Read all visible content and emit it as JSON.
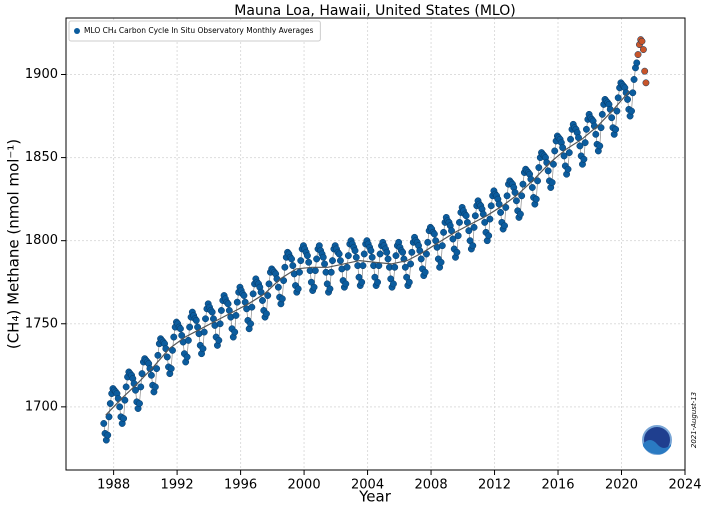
{
  "chart_data": {
    "type": "scatter",
    "title": "Mauna Loa, Hawaii, United States (MLO)",
    "xlabel": "Year",
    "ylabel": "(CH₄) Methane (nmol mol⁻¹)",
    "annotation": "2021-August-13",
    "xlim": [
      1985,
      2024
    ],
    "ylim": [
      1662,
      1934
    ],
    "xticks": [
      1988,
      1992,
      1996,
      2000,
      2004,
      2008,
      2012,
      2016,
      2020,
      2024
    ],
    "yticks": [
      1700,
      1750,
      1800,
      1850,
      1900
    ],
    "grid": true,
    "legend": "upper left",
    "series": [
      {
        "name": "MLO CH₄ Carbon Cycle In Situ Observatory Monthly Averages",
        "color": "#0b5c9e",
        "line_color": "#8a8a8a",
        "mode": "markers+lines",
        "x": [
          1987.38,
          1987.46,
          1987.54,
          1987.63,
          1987.71,
          1987.79,
          1987.88,
          1987.96,
          1988.04,
          1988.13,
          1988.21,
          1988.29,
          1988.38,
          1988.46,
          1988.54,
          1988.63,
          1988.71,
          1988.79,
          1988.88,
          1988.96,
          1989.04,
          1989.13,
          1989.21,
          1989.29,
          1989.38,
          1989.46,
          1989.54,
          1989.63,
          1989.71,
          1989.79,
          1989.88,
          1989.96,
          1990.04,
          1990.13,
          1990.21,
          1990.29,
          1990.38,
          1990.46,
          1990.54,
          1990.63,
          1990.71,
          1990.79,
          1990.88,
          1990.96,
          1991.04,
          1991.13,
          1991.21,
          1991.29,
          1991.38,
          1991.46,
          1991.54,
          1991.63,
          1991.71,
          1991.79,
          1991.88,
          1991.96,
          1992.04,
          1992.13,
          1992.21,
          1992.29,
          1992.38,
          1992.46,
          1992.54,
          1992.63,
          1992.71,
          1992.79,
          1992.88,
          1992.96,
          1993.04,
          1993.13,
          1993.21,
          1993.29,
          1993.38,
          1993.46,
          1993.54,
          1993.63,
          1993.71,
          1993.79,
          1993.88,
          1993.96,
          1994.04,
          1994.13,
          1994.21,
          1994.29,
          1994.38,
          1994.46,
          1994.54,
          1994.63,
          1994.71,
          1994.79,
          1994.88,
          1994.96,
          1995.04,
          1995.13,
          1995.21,
          1995.29,
          1995.38,
          1995.46,
          1995.54,
          1995.63,
          1995.71,
          1995.79,
          1995.88,
          1995.96,
          1996.04,
          1996.13,
          1996.21,
          1996.29,
          1996.38,
          1996.46,
          1996.54,
          1996.63,
          1996.71,
          1996.79,
          1996.88,
          1996.96,
          1997.04,
          1997.13,
          1997.21,
          1997.29,
          1997.38,
          1997.46,
          1997.54,
          1997.63,
          1997.71,
          1997.79,
          1997.88,
          1997.96,
          1998.04,
          1998.13,
          1998.21,
          1998.29,
          1998.38,
          1998.46,
          1998.54,
          1998.63,
          1998.71,
          1998.79,
          1998.88,
          1998.96,
          1999.04,
          1999.13,
          1999.21,
          1999.29,
          1999.38,
          1999.46,
          1999.54,
          1999.63,
          1999.71,
          1999.79,
          1999.88,
          1999.96,
          2000.04,
          2000.13,
          2000.21,
          2000.29,
          2000.38,
          2000.46,
          2000.54,
          2000.63,
          2000.71,
          2000.79,
          2000.88,
          2000.96,
          2001.04,
          2001.13,
          2001.21,
          2001.29,
          2001.38,
          2001.46,
          2001.54,
          2001.63,
          2001.71,
          2001.79,
          2001.88,
          2001.96,
          2002.04,
          2002.13,
          2002.21,
          2002.29,
          2002.38,
          2002.46,
          2002.54,
          2002.63,
          2002.71,
          2002.79,
          2002.88,
          2002.96,
          2003.04,
          2003.13,
          2003.21,
          2003.29,
          2003.38,
          2003.46,
          2003.54,
          2003.63,
          2003.71,
          2003.79,
          2003.88,
          2003.96,
          2004.04,
          2004.13,
          2004.21,
          2004.29,
          2004.38,
          2004.46,
          2004.54,
          2004.63,
          2004.71,
          2004.79,
          2004.88,
          2004.96,
          2005.04,
          2005.13,
          2005.21,
          2005.29,
          2005.38,
          2005.46,
          2005.54,
          2005.63,
          2005.71,
          2005.79,
          2005.88,
          2005.96,
          2006.04,
          2006.13,
          2006.21,
          2006.29,
          2006.38,
          2006.46,
          2006.54,
          2006.63,
          2006.71,
          2006.79,
          2006.88,
          2006.96,
          2007.04,
          2007.13,
          2007.21,
          2007.29,
          2007.38,
          2007.46,
          2007.54,
          2007.63,
          2007.71,
          2007.79,
          2007.88,
          2007.96,
          2008.04,
          2008.13,
          2008.21,
          2008.29,
          2008.38,
          2008.46,
          2008.54,
          2008.63,
          2008.71,
          2008.79,
          2008.88,
          2008.96,
          2009.04,
          2009.13,
          2009.21,
          2009.29,
          2009.38,
          2009.46,
          2009.54,
          2009.63,
          2009.71,
          2009.79,
          2009.88,
          2009.96,
          2010.04,
          2010.13,
          2010.21,
          2010.29,
          2010.38,
          2010.46,
          2010.54,
          2010.63,
          2010.71,
          2010.79,
          2010.88,
          2010.96,
          2011.04,
          2011.13,
          2011.21,
          2011.29,
          2011.38,
          2011.46,
          2011.54,
          2011.63,
          2011.71,
          2011.79,
          2011.88,
          2011.96,
          2012.04,
          2012.13,
          2012.21,
          2012.29,
          2012.38,
          2012.46,
          2012.54,
          2012.63,
          2012.71,
          2012.79,
          2012.88,
          2012.96,
          2013.04,
          2013.13,
          2013.21,
          2013.29,
          2013.38,
          2013.46,
          2013.54,
          2013.63,
          2013.71,
          2013.79,
          2013.88,
          2013.96,
          2014.04,
          2014.13,
          2014.21,
          2014.29,
          2014.38,
          2014.46,
          2014.54,
          2014.63,
          2014.71,
          2014.79,
          2014.88,
          2014.96,
          2015.04,
          2015.13,
          2015.21,
          2015.29,
          2015.38,
          2015.46,
          2015.54,
          2015.63,
          2015.71,
          2015.79,
          2015.88,
          2015.96,
          2016.04,
          2016.13,
          2016.21,
          2016.29,
          2016.38,
          2016.46,
          2016.54,
          2016.63,
          2016.71,
          2016.79,
          2016.88,
          2016.96,
          2017.04,
          2017.13,
          2017.21,
          2017.29,
          2017.38,
          2017.46,
          2017.54,
          2017.63,
          2017.71,
          2017.79,
          2017.88,
          2017.96,
          2018.04,
          2018.13,
          2018.21,
          2018.29,
          2018.38,
          2018.46,
          2018.54,
          2018.63,
          2018.71,
          2018.79,
          2018.88,
          2018.96,
          2019.04,
          2019.13,
          2019.21,
          2019.29,
          2019.38,
          2019.46,
          2019.54,
          2019.63,
          2019.71,
          2019.79,
          2019.88,
          2019.96,
          2020.04,
          2020.13,
          2020.21,
          2020.29,
          2020.38,
          2020.46,
          2020.54,
          2020.63,
          2020.71,
          2020.79,
          2020.88,
          2020.96
        ],
        "values": [
          1690,
          1684,
          1680,
          1683,
          1694,
          1702,
          1708,
          1711,
          1710,
          1709,
          1708,
          1705,
          1700,
          1694,
          1690,
          1693,
          1704,
          1712,
          1718,
          1721,
          1720,
          1719,
          1717,
          1714,
          1710,
          1703,
          1699,
          1702,
          1712,
          1720,
          1727,
          1729,
          1728,
          1727,
          1726,
          1723,
          1719,
          1713,
          1709,
          1712,
          1723,
          1731,
          1738,
          1741,
          1740,
          1739,
          1738,
          1735,
          1730,
          1724,
          1720,
          1723,
          1734,
          1742,
          1748,
          1751,
          1750,
          1748,
          1747,
          1743,
          1739,
          1732,
          1727,
          1730,
          1740,
          1748,
          1754,
          1757,
          1755,
          1753,
          1752,
          1748,
          1744,
          1737,
          1732,
          1735,
          1745,
          1753,
          1759,
          1762,
          1760,
          1758,
          1757,
          1753,
          1749,
          1742,
          1737,
          1740,
          1750,
          1758,
          1764,
          1767,
          1765,
          1763,
          1762,
          1758,
          1754,
          1747,
          1742,
          1745,
          1755,
          1763,
          1769,
          1772,
          1770,
          1768,
          1767,
          1763,
          1759,
          1752,
          1747,
          1750,
          1760,
          1768,
          1774,
          1777,
          1775,
          1774,
          1772,
          1769,
          1764,
          1758,
          1754,
          1756,
          1767,
          1774,
          1781,
          1783,
          1782,
          1781,
          1780,
          1777,
          1772,
          1766,
          1762,
          1765,
          1776,
          1784,
          1790,
          1793,
          1792,
          1790,
          1789,
          1785,
          1780,
          1773,
          1769,
          1771,
          1781,
          1788,
          1795,
          1797,
          1795,
          1793,
          1791,
          1787,
          1782,
          1775,
          1770,
          1772,
          1782,
          1789,
          1795,
          1797,
          1794,
          1792,
          1790,
          1786,
          1781,
          1774,
          1769,
          1771,
          1781,
          1788,
          1795,
          1797,
          1795,
          1793,
          1792,
          1788,
          1783,
          1776,
          1772,
          1774,
          1784,
          1791,
          1798,
          1800,
          1798,
          1796,
          1794,
          1790,
          1785,
          1778,
          1773,
          1775,
          1785,
          1792,
          1798,
          1800,
          1798,
          1796,
          1794,
          1790,
          1785,
          1778,
          1773,
          1775,
          1785,
          1792,
          1797,
          1799,
          1797,
          1795,
          1793,
          1789,
          1784,
          1777,
          1772,
          1774,
          1784,
          1791,
          1797,
          1799,
          1796,
          1794,
          1793,
          1789,
          1784,
          1778,
          1773,
          1775,
          1786,
          1793,
          1799,
          1802,
          1800,
          1799,
          1797,
          1794,
          1789,
          1783,
          1779,
          1781,
          1792,
          1799,
          1806,
          1808,
          1807,
          1805,
          1804,
          1800,
          1796,
          1789,
          1784,
          1787,
          1797,
          1805,
          1811,
          1814,
          1812,
          1811,
          1809,
          1806,
          1801,
          1795,
          1790,
          1793,
          1803,
          1811,
          1817,
          1820,
          1818,
          1816,
          1815,
          1811,
          1806,
          1800,
          1795,
          1797,
          1808,
          1815,
          1821,
          1824,
          1822,
          1821,
          1819,
          1816,
          1811,
          1805,
          1800,
          1803,
          1813,
          1821,
          1827,
          1830,
          1828,
          1827,
          1825,
          1822,
          1817,
          1811,
          1807,
          1809,
          1820,
          1827,
          1834,
          1836,
          1835,
          1834,
          1832,
          1829,
          1824,
          1818,
          1814,
          1816,
          1827,
          1834,
          1841,
          1843,
          1842,
          1841,
          1840,
          1837,
          1832,
          1826,
          1822,
          1825,
          1836,
          1844,
          1850,
          1853,
          1852,
          1851,
          1850,
          1847,
          1842,
          1836,
          1832,
          1835,
          1846,
          1854,
          1860,
          1863,
          1862,
          1861,
          1859,
          1856,
          1851,
          1845,
          1840,
          1843,
          1853,
          1861,
          1867,
          1870,
          1868,
          1867,
          1865,
          1862,
          1857,
          1851,
          1846,
          1849,
          1859,
          1867,
          1873,
          1876,
          1874,
          1873,
          1872,
          1869,
          1864,
          1858,
          1854,
          1857,
          1868,
          1876,
          1882,
          1885,
          1884,
          1883,
          1882,
          1879,
          1874,
          1868,
          1864,
          1867,
          1878,
          1886,
          1892,
          1895,
          1894,
          1893,
          1892,
          1889,
          1885,
          1879,
          1875,
          1878,
          1889,
          1897,
          1904,
          1907
        ]
      },
      {
        "color": "#c8552a",
        "mode": "markers",
        "x": [
          2021.04,
          2021.13,
          2021.21,
          2021.29,
          2021.38,
          2021.46,
          2021.54
        ],
        "values": [
          1912,
          1918,
          1921,
          1920,
          1915,
          1902,
          1895
        ]
      },
      {
        "color": "#555555",
        "mode": "lines",
        "x": [
          1987.5,
          1988.5,
          1989.5,
          1990.5,
          1991.5,
          1992.5,
          1993.5,
          1994.5,
          1995.5,
          1996.5,
          1997.5,
          1998.5,
          1999.5,
          2000.5,
          2001.5,
          2002.5,
          2003.5,
          2004.5,
          2005.5,
          2006.5,
          2007.5,
          2008.5,
          2009.5,
          2010.5,
          2011.5,
          2012.5,
          2013.5,
          2014.5,
          2015.5,
          2016.5,
          2017.5,
          2018.5,
          2019.5,
          2020.5
        ],
        "values": [
          1695,
          1705,
          1714,
          1724,
          1735,
          1742,
          1747,
          1752,
          1757,
          1762,
          1768,
          1777,
          1783,
          1784,
          1784,
          1786,
          1788,
          1787,
          1786,
          1788,
          1793,
          1799,
          1805,
          1810,
          1815,
          1821,
          1828,
          1837,
          1847,
          1855,
          1861,
          1869,
          1879,
          1890
        ]
      }
    ]
  }
}
